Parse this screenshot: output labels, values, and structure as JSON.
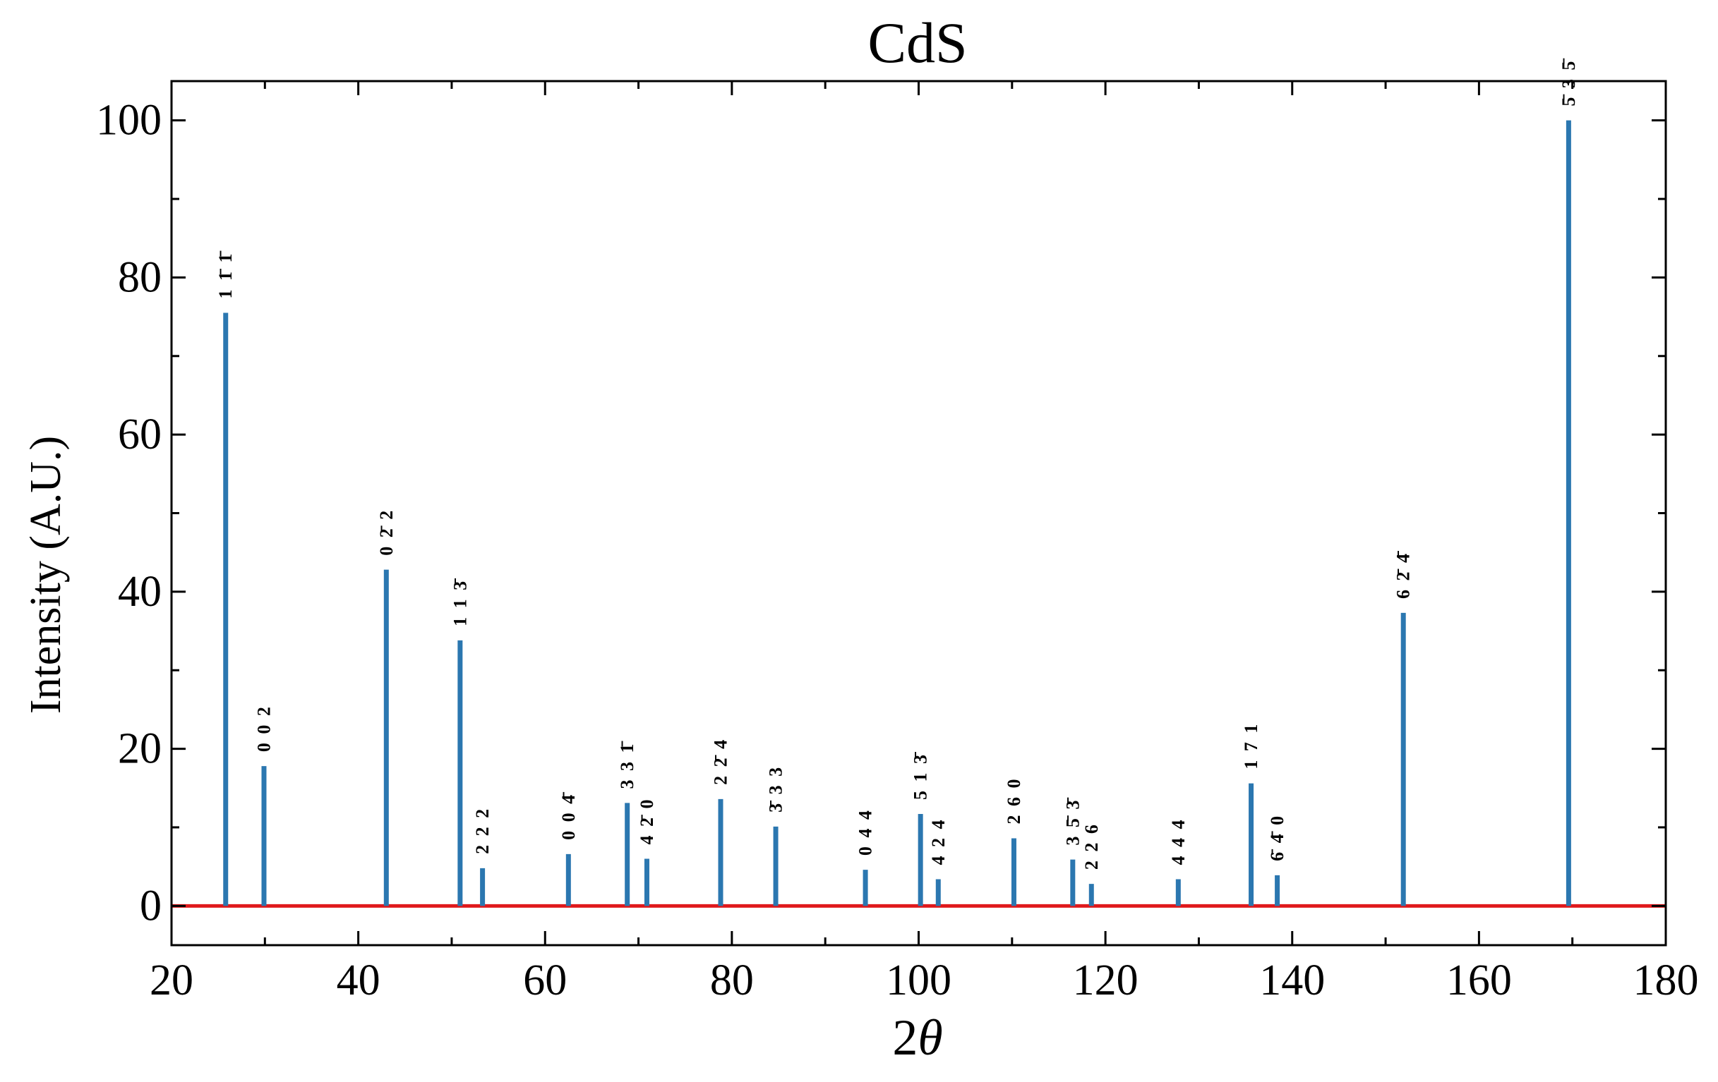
{
  "chart_data": {
    "type": "bar",
    "title": "CdS",
    "xlabel": "2θ",
    "xlabel_parts": {
      "number": "2",
      "symbol": "θ"
    },
    "ylabel": "Intensity (A.U.)",
    "xlim": [
      20,
      180
    ],
    "ylim": [
      -5,
      105
    ],
    "xticks": [
      "20",
      "40",
      "60",
      "80",
      "100",
      "120",
      "140",
      "160",
      "180"
    ],
    "yticks": [
      "0",
      "20",
      "40",
      "60",
      "80",
      "100"
    ],
    "xtick_values": [
      20,
      40,
      60,
      80,
      100,
      120,
      140,
      160,
      180
    ],
    "ytick_values": [
      0,
      20,
      40,
      60,
      80,
      100
    ],
    "ticks_inside": true,
    "grid": false,
    "bar_color": "#2b77b0",
    "baseline": {
      "y": 0,
      "color": "#e0191c"
    },
    "peaks": [
      {
        "x": 25.8,
        "y": 75.5,
        "label": "1 1̄ 1̄"
      },
      {
        "x": 29.9,
        "y": 17.8,
        "label": "0 0 2"
      },
      {
        "x": 43.0,
        "y": 42.8,
        "label": "0 2̄ 2"
      },
      {
        "x": 50.9,
        "y": 33.8,
        "label": "1 1 3̄"
      },
      {
        "x": 53.3,
        "y": 4.8,
        "label": "2 2 2"
      },
      {
        "x": 62.5,
        "y": 6.6,
        "label": "0 0 4̄"
      },
      {
        "x": 68.8,
        "y": 13.1,
        "label": "3 3 1̄"
      },
      {
        "x": 70.9,
        "y": 6.0,
        "label": "4 2̄ 0"
      },
      {
        "x": 78.8,
        "y": 13.6,
        "label": "2 2̄ 4"
      },
      {
        "x": 84.7,
        "y": 10.1,
        "label": "3̄ 3 3"
      },
      {
        "x": 94.3,
        "y": 4.6,
        "label": "0 4 4"
      },
      {
        "x": 100.2,
        "y": 11.7,
        "label": "5 1 3̄"
      },
      {
        "x": 102.1,
        "y": 3.4,
        "label": "4 2 4"
      },
      {
        "x": 110.2,
        "y": 8.6,
        "label": "2 6 0"
      },
      {
        "x": 116.5,
        "y": 5.9,
        "label": "3 5̄ 3̄"
      },
      {
        "x": 118.5,
        "y": 2.8,
        "label": "2 2 6"
      },
      {
        "x": 127.8,
        "y": 3.4,
        "label": "4 4 4"
      },
      {
        "x": 135.6,
        "y": 15.6,
        "label": "1 7 1"
      },
      {
        "x": 138.4,
        "y": 3.9,
        "label": "6̄ 4̄ 0"
      },
      {
        "x": 151.9,
        "y": 37.3,
        "label": "6 2̄ 4̄"
      },
      {
        "x": 169.6,
        "y": 100.0,
        "label": "5̄ 3 5̄"
      }
    ]
  }
}
